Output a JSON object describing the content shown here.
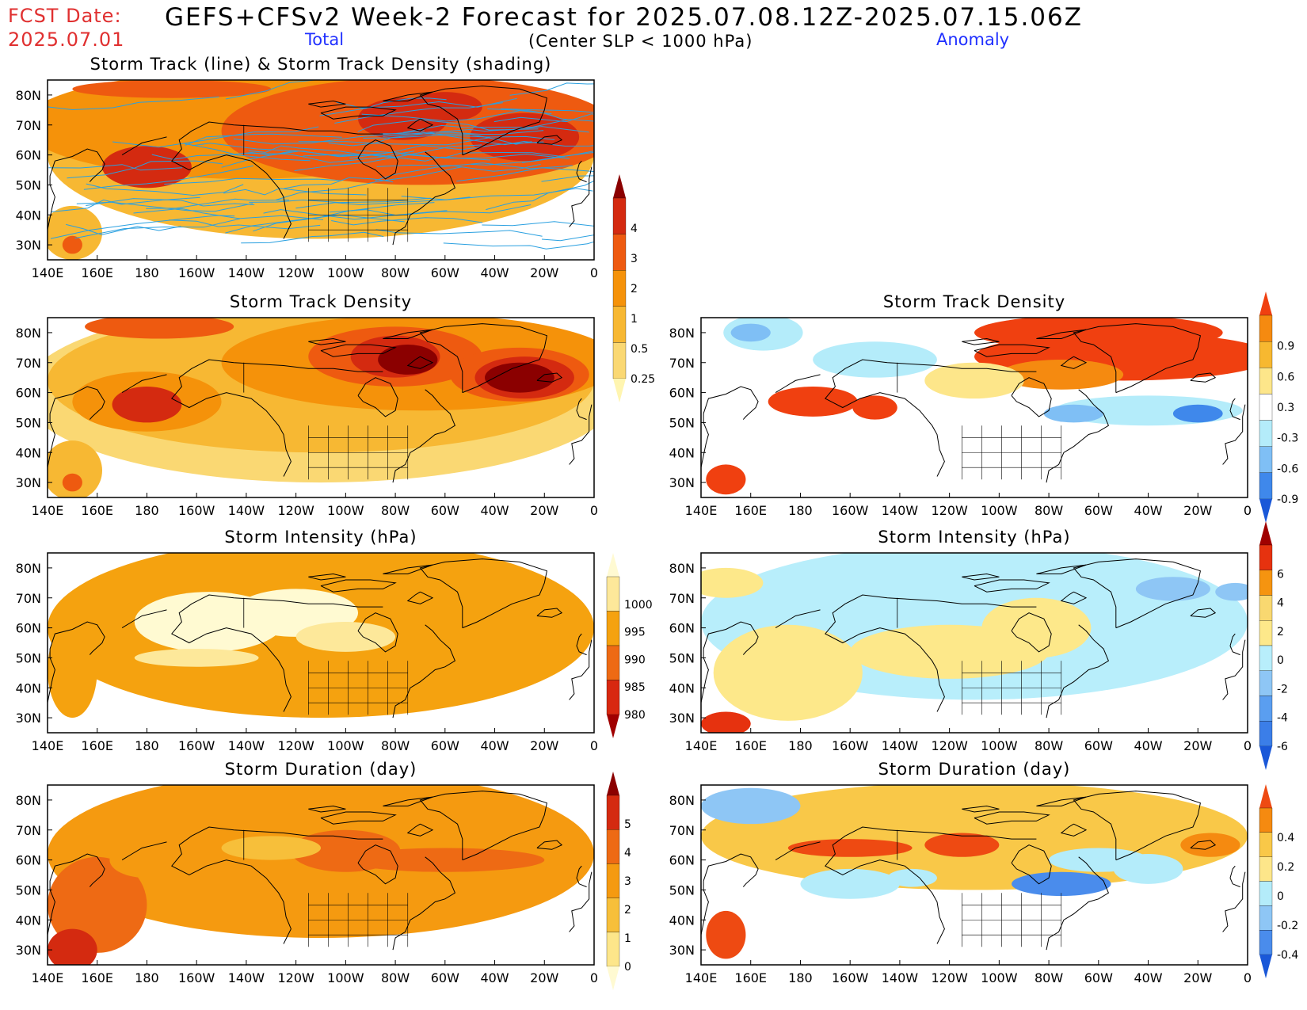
{
  "header": {
    "fcst_label": "FCST Date:",
    "fcst_date": "2025.07.01",
    "title": "GEFS+CFSv2 Week-2 Forecast for 2025.07.08.12Z-2025.07.15.06Z",
    "sub_total": "Total",
    "sub_center": "(Center SLP < 1000 hPa)",
    "sub_anomaly": "Anomaly"
  },
  "chart_data": [
    {
      "id": "track",
      "type": "heatmap",
      "title": "Storm Track (line) & Storm Track Density (shading)",
      "x_ticks": [
        "140E",
        "160E",
        "180",
        "160W",
        "140W",
        "120W",
        "100W",
        "80W",
        "60W",
        "40W",
        "20W",
        "0"
      ],
      "y_ticks": [
        "80N",
        "70N",
        "60N",
        "50N",
        "40N",
        "30N"
      ],
      "colorbar": {
        "labels": [
          "4",
          "3",
          "2",
          "1",
          "0.5",
          "0.25"
        ],
        "colors": [
          "#8b0000",
          "#d42a10",
          "#ee5a10",
          "#f5920a",
          "#f7b833",
          "#fad873",
          "#fff5b0"
        ]
      }
    },
    {
      "id": "std-total",
      "type": "heatmap",
      "title": "Storm Track Density",
      "x_ticks": [
        "140E",
        "160E",
        "180",
        "160W",
        "140W",
        "120W",
        "100W",
        "80W",
        "60W",
        "40W",
        "20W",
        "0"
      ],
      "y_ticks": [
        "80N",
        "70N",
        "60N",
        "50N",
        "40N",
        "30N"
      ]
    },
    {
      "id": "std-anom",
      "type": "heatmap",
      "title": "Storm Track Density",
      "x_ticks": [
        "140E",
        "160E",
        "180",
        "160W",
        "140W",
        "120W",
        "100W",
        "80W",
        "60W",
        "40W",
        "20W",
        "0"
      ],
      "y_ticks": [
        "80N",
        "70N",
        "60N",
        "50N",
        "40N",
        "30N"
      ],
      "colorbar": {
        "labels": [
          "0.9",
          "0.6",
          "0.3",
          "-0.3",
          "-0.6",
          "-0.9"
        ],
        "colors": [
          "#f04010",
          "#f58a10",
          "#f7b830",
          "#fde68a",
          "#ffffff",
          "#b4ecfa",
          "#7fbff5",
          "#3f88eb",
          "#1a58d8"
        ]
      }
    },
    {
      "id": "int-total",
      "type": "heatmap",
      "title": "Storm Intensity (hPa)",
      "x_ticks": [
        "140E",
        "160E",
        "180",
        "160W",
        "140W",
        "120W",
        "100W",
        "80W",
        "60W",
        "40W",
        "20W",
        "0"
      ],
      "y_ticks": [
        "80N",
        "70N",
        "60N",
        "50N",
        "40N",
        "30N"
      ],
      "colorbar": {
        "labels": [
          "1000",
          "995",
          "990",
          "985",
          "980"
        ],
        "colors": [
          "#fffad2",
          "#fde89a",
          "#f5a20f",
          "#ee6a14",
          "#d82810",
          "#a00000"
        ]
      }
    },
    {
      "id": "int-anom",
      "type": "heatmap",
      "title": "Storm Intensity (hPa)",
      "x_ticks": [
        "140E",
        "160E",
        "180",
        "160W",
        "140W",
        "120W",
        "100W",
        "80W",
        "60W",
        "40W",
        "20W",
        "0"
      ],
      "y_ticks": [
        "80N",
        "70N",
        "60N",
        "50N",
        "40N",
        "30N"
      ],
      "colorbar": {
        "labels": [
          "6",
          "4",
          "2",
          "0",
          "-2",
          "-4",
          "-6"
        ],
        "colors": [
          "#a00000",
          "#e6320f",
          "#f59410",
          "#f9d870",
          "#fde88a",
          "#b8eefb",
          "#8ec6f5",
          "#5a9ef0",
          "#3b7ee8",
          "#1a58d8"
        ]
      }
    },
    {
      "id": "dur-total",
      "type": "heatmap",
      "title": "Storm Duration (day)",
      "x_ticks": [
        "140E",
        "160E",
        "180",
        "160W",
        "140W",
        "120W",
        "100W",
        "80W",
        "60W",
        "40W",
        "20W",
        "0"
      ],
      "y_ticks": [
        "80N",
        "70N",
        "60N",
        "50N",
        "40N",
        "30N"
      ],
      "colorbar": {
        "labels": [
          "5",
          "4",
          "3",
          "2",
          "1",
          "0"
        ],
        "colors": [
          "#8b0000",
          "#d42a10",
          "#ee6a14",
          "#f59a10",
          "#f7bf3a",
          "#fde68a",
          "#fffad2"
        ]
      }
    },
    {
      "id": "dur-anom",
      "type": "heatmap",
      "title": "Storm Duration (day)",
      "x_ticks": [
        "140E",
        "160E",
        "180",
        "160W",
        "140W",
        "120W",
        "100W",
        "80W",
        "60W",
        "40W",
        "20W",
        "0"
      ],
      "y_ticks": [
        "80N",
        "70N",
        "60N",
        "50N",
        "40N",
        "30N"
      ],
      "colorbar": {
        "labels": [
          "0.4",
          "0.2",
          "0",
          "-0.2",
          "-0.4"
        ],
        "colors": [
          "#ee4a12",
          "#f58a10",
          "#f9c848",
          "#fde68a",
          "#b4ecfa",
          "#8ec6f5",
          "#4a8cec",
          "#1a58d8"
        ]
      }
    }
  ]
}
